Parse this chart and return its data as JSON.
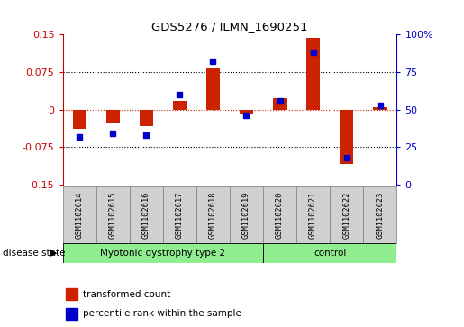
{
  "title": "GDS5276 / ILMN_1690251",
  "samples": [
    "GSM1102614",
    "GSM1102615",
    "GSM1102616",
    "GSM1102617",
    "GSM1102618",
    "GSM1102619",
    "GSM1102620",
    "GSM1102621",
    "GSM1102622",
    "GSM1102623"
  ],
  "red_values": [
    -0.038,
    -0.028,
    -0.033,
    0.017,
    0.083,
    -0.008,
    0.022,
    0.143,
    -0.108,
    0.005
  ],
  "blue_values_pct": [
    32,
    34,
    33,
    60,
    82,
    46,
    56,
    88,
    18,
    53
  ],
  "ylim_left": [
    -0.15,
    0.15
  ],
  "ylim_right": [
    0,
    100
  ],
  "yticks_left": [
    -0.15,
    -0.075,
    0,
    0.075,
    0.15
  ],
  "yticks_right": [
    0,
    25,
    50,
    75,
    100
  ],
  "ytick_labels_left": [
    "-0.15",
    "-0.075",
    "0",
    "0.075",
    "0.15"
  ],
  "ytick_labels_right": [
    "0",
    "25",
    "50",
    "75",
    "100%"
  ],
  "disease_groups": [
    {
      "label": "Myotonic dystrophy type 2",
      "start": 0,
      "end": 6,
      "color": "#90ee90"
    },
    {
      "label": "control",
      "start": 6,
      "end": 10,
      "color": "#90ee90"
    }
  ],
  "xlabel_color_left": "#cc0000",
  "xlabel_color_right": "#0000cc",
  "bar_color_red": "#cc2200",
  "bar_color_blue": "#0000cc",
  "background_color": "#ffffff",
  "plot_bg_color": "#ffffff",
  "legend_red_label": "transformed count",
  "legend_blue_label": "percentile rank within the sample",
  "disease_state_label": "disease state",
  "bar_width": 0.4,
  "sample_box_color": "#d0d0d0",
  "sample_box_edge_color": "#888888"
}
